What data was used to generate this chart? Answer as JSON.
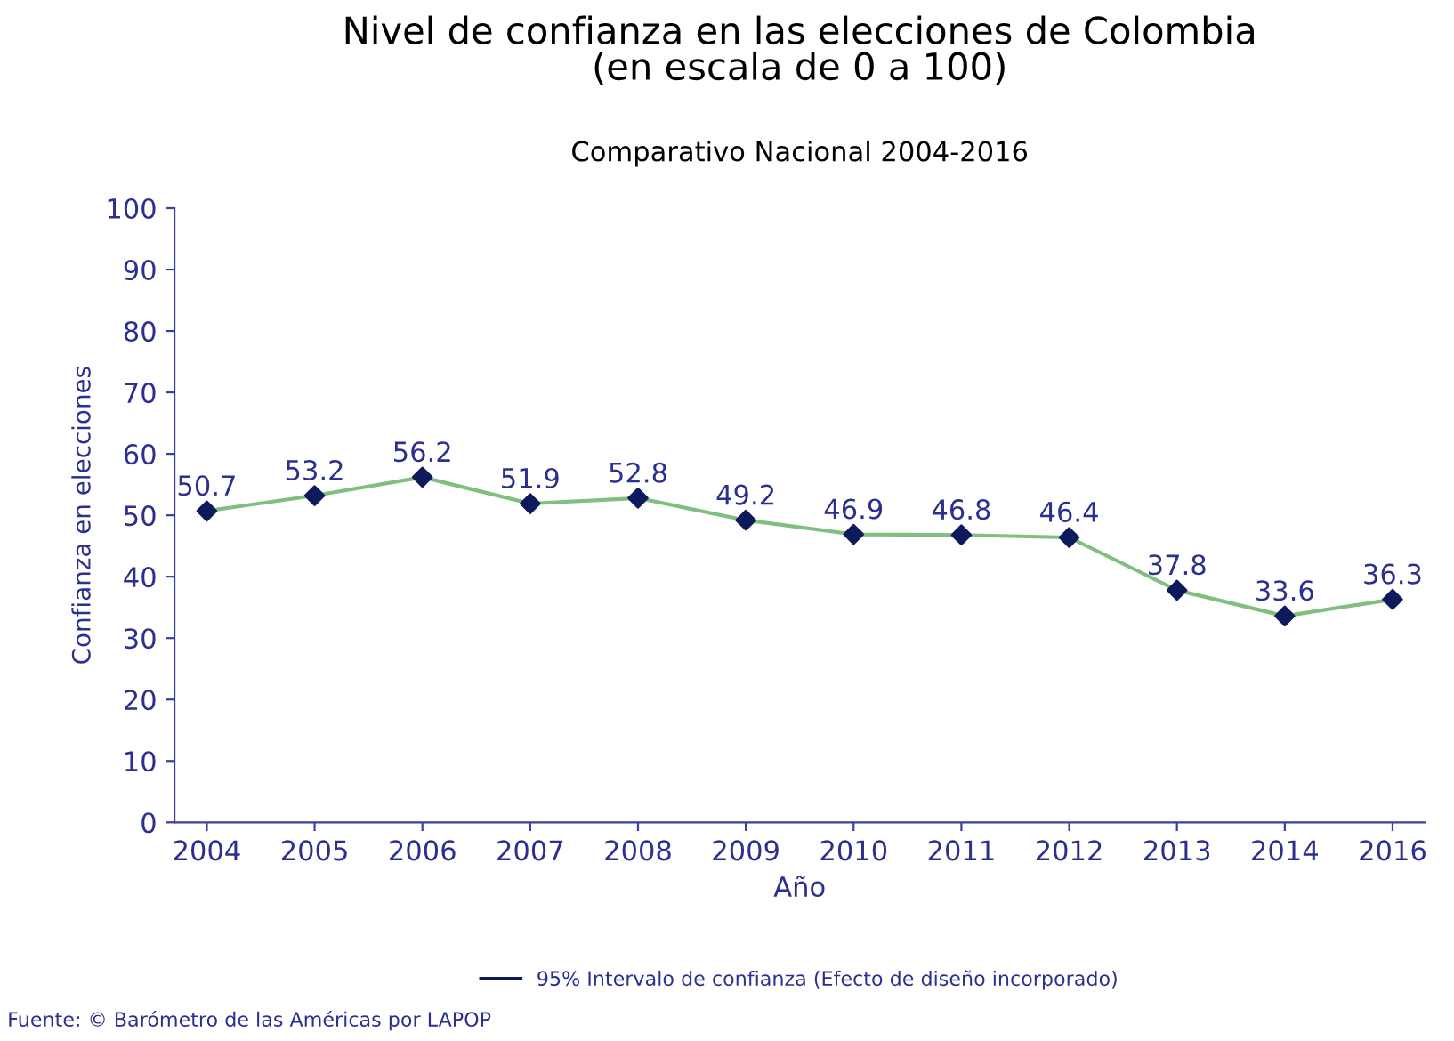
{
  "chart_data": {
    "type": "line",
    "title": "Nivel de confianza en las elecciones de Colombia\n(en escala de 0 a 100)",
    "subtitle": "Comparativo Nacional 2004-2016",
    "xlabel": "Año",
    "ylabel": "Confianza en elecciones",
    "categories": [
      "2004",
      "2005",
      "2006",
      "2007",
      "2008",
      "2009",
      "2010",
      "2011",
      "2012",
      "2013",
      "2014",
      "2016"
    ],
    "series": [
      {
        "color": "#7fbf7f",
        "values": [
          50.7,
          53.2,
          56.2,
          51.9,
          52.8,
          49.2,
          46.9,
          46.8,
          46.4,
          37.8,
          33.6,
          36.3
        ],
        "marker": "none"
      },
      {
        "type": "scatter",
        "name": "95% Intervalo de confianza (Efecto de diseño incorporado)",
        "color": "#0d1a5c",
        "values": [
          50.7,
          53.2,
          56.2,
          51.9,
          52.8,
          49.2,
          46.9,
          46.8,
          46.4,
          37.8,
          33.6,
          36.3
        ],
        "errors": [
          1.3,
          1.3,
          1.4,
          1.2,
          1.2,
          1.3,
          1.3,
          1.3,
          1.3,
          1.4,
          1.4,
          1.3
        ],
        "marker": "diamond",
        "value_labels": [
          "50.7",
          "53.2",
          "56.2",
          "51.9",
          "52.8",
          "49.2",
          "46.9",
          "46.8",
          "46.4",
          "37.8",
          "33.6",
          "36.3"
        ]
      }
    ],
    "ylim": [
      0,
      100
    ],
    "yticks": [
      0,
      10,
      20,
      30,
      40,
      50,
      60,
      70,
      80,
      90,
      100
    ],
    "grid": false,
    "legend": "bottom",
    "annotations": [
      "Fuente: © Barómetro de las Américas por LAPOP"
    ]
  }
}
